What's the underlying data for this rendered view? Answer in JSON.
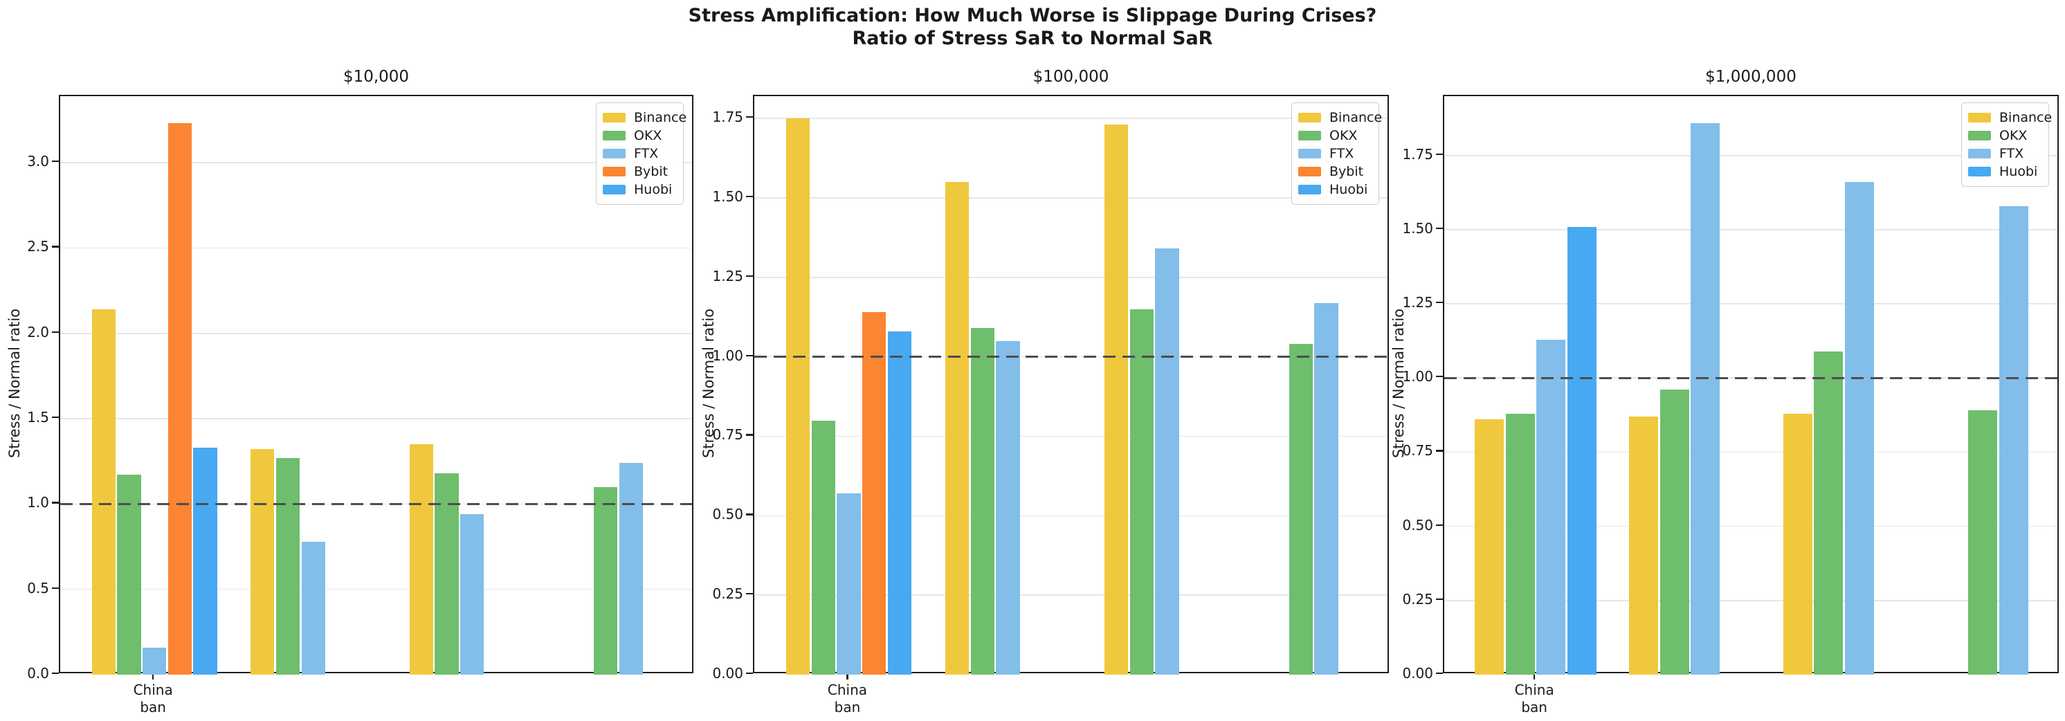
{
  "figure": {
    "title_line1": "Stress Amplification: How Much Worse is Slippage During Crises?",
    "title_line2": "Ratio of Stress SaR to Normal SaR"
  },
  "colors": {
    "Binance": "#f0c83e",
    "OKX": "#6ebe6d",
    "FTX": "#82bee9",
    "Bybit": "#fb8532",
    "Huobi": "#47a9f2",
    "reference_line": "#4d4d4d",
    "grid": "#e7e7e7"
  },
  "chart_data": [
    {
      "type": "bar",
      "title": "$10,000",
      "ylabel": "Stress / Normal ratio",
      "ylim": [
        0,
        3.39
      ],
      "grid": true,
      "legend_position": "upper right",
      "reference_line_y": 1.0,
      "ytick_values": [
        0.0,
        0.5,
        1.0,
        1.5,
        2.0,
        2.5,
        3.0
      ],
      "ytick_labels": [
        "0.0",
        "0.5",
        "1.0",
        "1.5",
        "2.0",
        "2.5",
        "3.0"
      ],
      "categories": [
        "China ban",
        "",
        "",
        ""
      ],
      "category_label_lines": [
        [
          "China",
          "ban"
        ],
        [],
        [],
        []
      ],
      "legend": [
        "Binance",
        "OKX",
        "FTX",
        "Bybit",
        "Huobi"
      ],
      "series": [
        {
          "name": "Binance",
          "values": [
            2.14,
            1.32,
            1.35,
            null
          ]
        },
        {
          "name": "OKX",
          "values": [
            1.17,
            1.27,
            1.18,
            1.1
          ]
        },
        {
          "name": "FTX",
          "values": [
            0.16,
            0.78,
            0.94,
            1.24
          ]
        },
        {
          "name": "Bybit",
          "values": [
            3.23,
            null,
            null,
            null
          ]
        },
        {
          "name": "Huobi",
          "values": [
            1.33,
            null,
            null,
            null
          ]
        }
      ]
    },
    {
      "type": "bar",
      "title": "$100,000",
      "ylabel": "Stress / Normal ratio",
      "ylim": [
        0,
        1.82
      ],
      "grid": true,
      "legend_position": "upper right",
      "reference_line_y": 1.0,
      "ytick_values": [
        0.0,
        0.25,
        0.5,
        0.75,
        1.0,
        1.25,
        1.5,
        1.75
      ],
      "ytick_labels": [
        "0.00",
        "0.25",
        "0.50",
        "0.75",
        "1.00",
        "1.25",
        "1.50",
        "1.75"
      ],
      "categories": [
        "China ban",
        "",
        "",
        ""
      ],
      "category_label_lines": [
        [
          "China",
          "ban"
        ],
        [],
        [],
        []
      ],
      "legend": [
        "Binance",
        "OKX",
        "FTX",
        "Bybit",
        "Huobi"
      ],
      "series": [
        {
          "name": "Binance",
          "values": [
            1.75,
            1.55,
            1.73,
            null
          ]
        },
        {
          "name": "OKX",
          "values": [
            0.8,
            1.09,
            1.15,
            1.04
          ]
        },
        {
          "name": "FTX",
          "values": [
            0.57,
            1.05,
            1.34,
            1.17
          ]
        },
        {
          "name": "Bybit",
          "values": [
            1.14,
            null,
            null,
            null
          ]
        },
        {
          "name": "Huobi",
          "values": [
            1.08,
            null,
            null,
            null
          ]
        }
      ]
    },
    {
      "type": "bar",
      "title": "$1,000,000",
      "ylabel": "Stress / Normal ratio",
      "ylim": [
        0,
        1.95
      ],
      "grid": true,
      "legend_position": "upper right",
      "reference_line_y": 1.0,
      "ytick_values": [
        0.0,
        0.25,
        0.5,
        0.75,
        1.0,
        1.25,
        1.5,
        1.75
      ],
      "ytick_labels": [
        "0.00",
        "0.25",
        "0.50",
        "0.75",
        "1.00",
        "1.25",
        "1.50",
        "1.75"
      ],
      "categories": [
        "China ban",
        "",
        "",
        ""
      ],
      "category_label_lines": [
        [
          "China",
          "ban"
        ],
        [],
        [],
        []
      ],
      "legend": [
        "Binance",
        "OKX",
        "FTX",
        "Huobi"
      ],
      "series": [
        {
          "name": "Binance",
          "values": [
            0.86,
            0.87,
            0.88,
            null
          ]
        },
        {
          "name": "OKX",
          "values": [
            0.88,
            0.96,
            1.09,
            0.89
          ]
        },
        {
          "name": "FTX",
          "values": [
            1.13,
            1.86,
            1.66,
            1.58
          ]
        },
        {
          "name": "Huobi",
          "values": [
            1.51,
            null,
            null,
            null
          ]
        }
      ]
    }
  ]
}
